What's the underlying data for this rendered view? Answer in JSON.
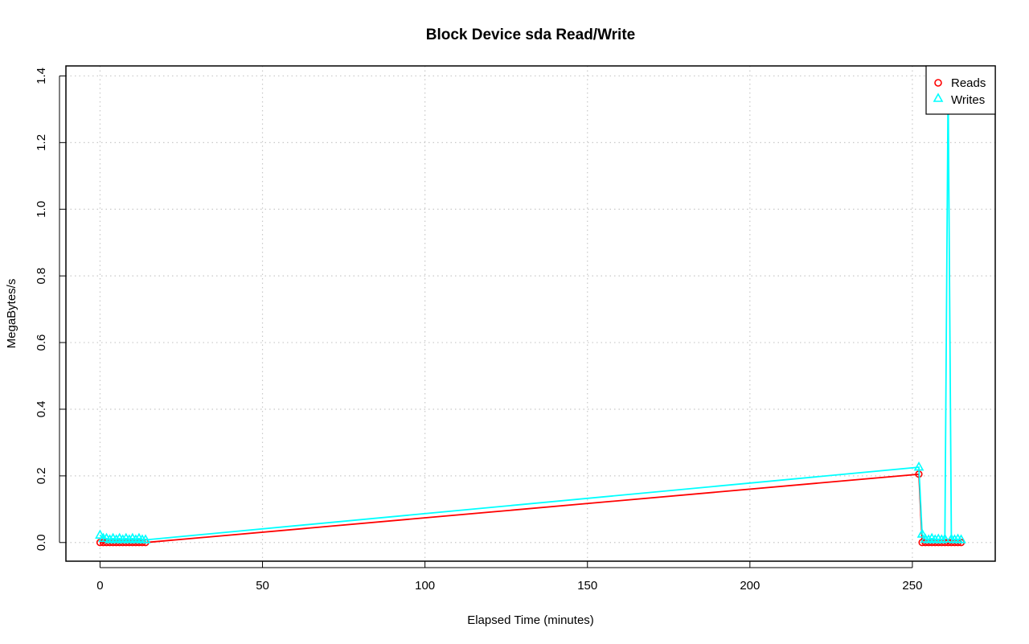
{
  "chart_data": {
    "type": "line",
    "title": "Block Device sda Read/Write",
    "xlabel": "Elapsed Time (minutes)",
    "ylabel": "MegaBytes/s",
    "xlim": [
      -10.5,
      275.5
    ],
    "ylim": [
      -0.056,
      1.43
    ],
    "x_ticks": [
      0,
      50,
      100,
      150,
      200,
      250
    ],
    "y_ticks": [
      0.0,
      0.2,
      0.4,
      0.6,
      0.8,
      1.0,
      1.2,
      1.4
    ],
    "x_tick_labels": [
      "0",
      "50",
      "100",
      "150",
      "200",
      "250"
    ],
    "y_tick_labels": [
      "0.0",
      "0.2",
      "0.4",
      "0.6",
      "0.8",
      "1.0",
      "1.2",
      "1.4"
    ],
    "grid": true,
    "legend_position": "top-right",
    "series": [
      {
        "name": "Reads",
        "color": "#ff0000",
        "marker": "circle",
        "x": [
          0,
          1,
          2,
          3,
          4,
          5,
          6,
          7,
          8,
          9,
          10,
          11,
          12,
          13,
          14,
          252,
          253,
          254,
          255,
          256,
          257,
          258,
          259,
          260,
          261,
          262,
          263,
          264,
          265
        ],
        "y": [
          0,
          0,
          0,
          0,
          0,
          0,
          0,
          0,
          0,
          0,
          0,
          0,
          0,
          0,
          0,
          0.205,
          0,
          0,
          0,
          0,
          0,
          0,
          0,
          0,
          0,
          0,
          0,
          0,
          0
        ]
      },
      {
        "name": "Writes",
        "color": "#00ffff",
        "marker": "triangle",
        "x": [
          0,
          1,
          2,
          3,
          4,
          5,
          6,
          7,
          8,
          9,
          10,
          11,
          12,
          13,
          14,
          252,
          253,
          254,
          255,
          256,
          257,
          258,
          259,
          260,
          261,
          262,
          263,
          264,
          265
        ],
        "y": [
          0.022,
          0.012,
          0.012,
          0.008,
          0.012,
          0.008,
          0.012,
          0.008,
          0.012,
          0.008,
          0.012,
          0.008,
          0.012,
          0.008,
          0.008,
          0.226,
          0.025,
          0.01,
          0.008,
          0.012,
          0.008,
          0.01,
          0.008,
          0.01,
          1.375,
          0.01,
          0.008,
          0.01,
          0.008
        ]
      }
    ]
  }
}
